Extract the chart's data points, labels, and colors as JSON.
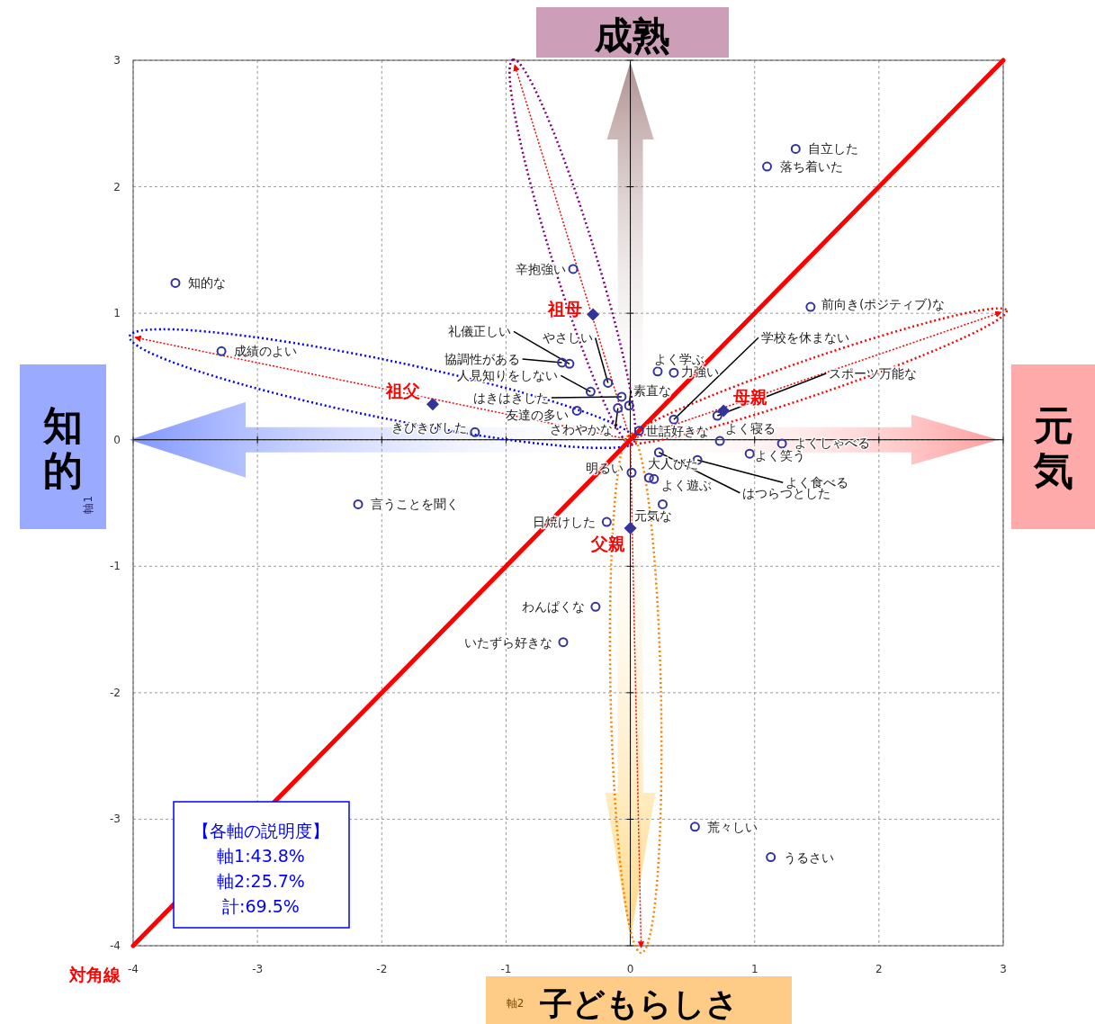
{
  "chart_data": {
    "type": "scatter",
    "xlabel": "軸2",
    "ylabel": "軸1",
    "xlim": [
      -4,
      3
    ],
    "ylim": [
      -4,
      3
    ],
    "xticks": [
      -4,
      -3,
      -2,
      -1,
      0,
      1,
      2,
      3
    ],
    "yticks": [
      -4,
      -3,
      -2,
      -1,
      0,
      1,
      2,
      3
    ],
    "grid": true,
    "marker": "circle",
    "annotations": [
      "成熟",
      "元気",
      "子どもらしさ",
      "知的",
      "【各軸の説明度】",
      "軸1:43.8%",
      "軸2:25.7%",
      "計:69.5%"
    ],
    "series": [
      {
        "name": "自立した",
        "color": "#333399",
        "x": [
          1.33
        ],
        "values": [
          2.3
        ]
      },
      {
        "name": "落ち着いた",
        "color": "#333399",
        "x": [
          1.1
        ],
        "values": [
          2.16
        ]
      },
      {
        "name": "知的な",
        "color": "#333399",
        "x": [
          -3.66
        ],
        "values": [
          1.24
        ]
      },
      {
        "name": "前向き(ポジティブ)な",
        "color": "#333399",
        "x": [
          1.45
        ],
        "values": [
          1.05
        ]
      },
      {
        "name": "辛抱強い",
        "color": "#333399",
        "x": [
          -0.46
        ],
        "values": [
          1.35
        ]
      },
      {
        "name": "成績のよい",
        "color": "#333399",
        "x": [
          -3.29
        ],
        "values": [
          0.7
        ]
      },
      {
        "name": "礼儀正しい",
        "color": "#333399",
        "x": [
          -0.49
        ],
        "values": [
          0.6
        ]
      },
      {
        "name": "協調性がある",
        "color": "#333399",
        "x": [
          -0.55
        ],
        "values": [
          0.61
        ]
      },
      {
        "name": "やさしい",
        "color": "#333399",
        "x": [
          -0.18
        ],
        "values": [
          0.45
        ]
      },
      {
        "name": "人見知りをしない",
        "color": "#333399",
        "x": [
          -0.32
        ],
        "values": [
          0.38
        ]
      },
      {
        "name": "はきはきした",
        "color": "#333399",
        "x": [
          -0.07
        ],
        "values": [
          0.34
        ]
      },
      {
        "name": "素直な",
        "color": "#333399",
        "x": [
          -0.01
        ],
        "values": [
          0.27
        ]
      },
      {
        "name": "友達の多い",
        "color": "#333399",
        "x": [
          -0.43
        ],
        "values": [
          0.23
        ]
      },
      {
        "name": "さわやかな",
        "color": "#333399",
        "x": [
          -0.1
        ],
        "values": [
          0.25
        ]
      },
      {
        "name": "世話好きな",
        "color": "#333399",
        "x": [
          0.07
        ],
        "values": [
          0.07
        ]
      },
      {
        "name": "きびきびした",
        "color": "#333399",
        "x": [
          -1.25
        ],
        "values": [
          0.06
        ]
      },
      {
        "name": "よく学ぶ",
        "color": "#333399",
        "x": [
          0.22
        ],
        "values": [
          0.54
        ]
      },
      {
        "name": "力強い",
        "color": "#333399",
        "x": [
          0.35
        ],
        "values": [
          0.53
        ]
      },
      {
        "name": "学校を休まない",
        "color": "#333399",
        "x": [
          0.35
        ],
        "values": [
          0.16
        ]
      },
      {
        "name": "スポーツ万能な",
        "color": "#333399",
        "x": [
          0.7
        ],
        "values": [
          0.19
        ]
      },
      {
        "name": "よく寝る",
        "color": "#333399",
        "x": [
          0.72
        ],
        "values": [
          -0.01
        ]
      },
      {
        "name": "よくしゃべる",
        "color": "#333399",
        "x": [
          1.22
        ],
        "values": [
          -0.03
        ]
      },
      {
        "name": "よく笑う",
        "color": "#333399",
        "x": [
          0.96
        ],
        "values": [
          -0.11
        ]
      },
      {
        "name": "よく食べる",
        "color": "#333399",
        "x": [
          0.54
        ],
        "values": [
          -0.16
        ]
      },
      {
        "name": "はつらつとした",
        "color": "#333399",
        "x": [
          0.23
        ],
        "values": [
          -0.1
        ]
      },
      {
        "name": "明るい",
        "color": "#333399",
        "x": [
          0.01
        ],
        "values": [
          -0.26
        ]
      },
      {
        "name": "大人びた",
        "color": "#333399",
        "x": [
          0.15
        ],
        "values": [
          -0.3
        ]
      },
      {
        "name": "よく遊ぶ",
        "color": "#333399",
        "x": [
          0.19
        ],
        "values": [
          -0.31
        ]
      },
      {
        "name": "元気な",
        "color": "#333399",
        "x": [
          0.26
        ],
        "values": [
          -0.51
        ]
      },
      {
        "name": "日焼けした",
        "color": "#333399",
        "x": [
          -0.19
        ],
        "values": [
          -0.65
        ]
      },
      {
        "name": "言うことを聞く",
        "color": "#333399",
        "x": [
          -2.19
        ],
        "values": [
          -0.51
        ]
      },
      {
        "name": "わんぱくな",
        "color": "#333399",
        "x": [
          -0.28
        ],
        "values": [
          -1.32
        ]
      },
      {
        "name": "いたずら好きな",
        "color": "#333399",
        "x": [
          -0.54
        ],
        "values": [
          -1.6
        ]
      },
      {
        "name": "荒々しい",
        "color": "#333399",
        "x": [
          0.52
        ],
        "values": [
          -3.06
        ]
      },
      {
        "name": "うるさい",
        "color": "#333399",
        "x": [
          1.13
        ],
        "values": [
          -3.3
        ]
      },
      {
        "name": "祖母",
        "color": "#333399",
        "marker": "diamond",
        "x": [
          -0.3
        ],
        "values": [
          0.99
        ]
      },
      {
        "name": "祖父",
        "color": "#333399",
        "marker": "diamond",
        "x": [
          -1.59
        ],
        "values": [
          0.28
        ]
      },
      {
        "name": "母親",
        "color": "#333399",
        "marker": "diamond",
        "x": [
          0.75
        ],
        "values": [
          0.23
        ]
      },
      {
        "name": "父親",
        "color": "#333399",
        "marker": "diamond",
        "x": [
          0.0
        ],
        "values": [
          -0.7
        ]
      },
      {
        "name": "対角線",
        "type": "line",
        "marker": "none",
        "color": "#ff0000",
        "x": [
          -4,
          3
        ],
        "values": [
          -4,
          3
        ]
      }
    ]
  }
}
